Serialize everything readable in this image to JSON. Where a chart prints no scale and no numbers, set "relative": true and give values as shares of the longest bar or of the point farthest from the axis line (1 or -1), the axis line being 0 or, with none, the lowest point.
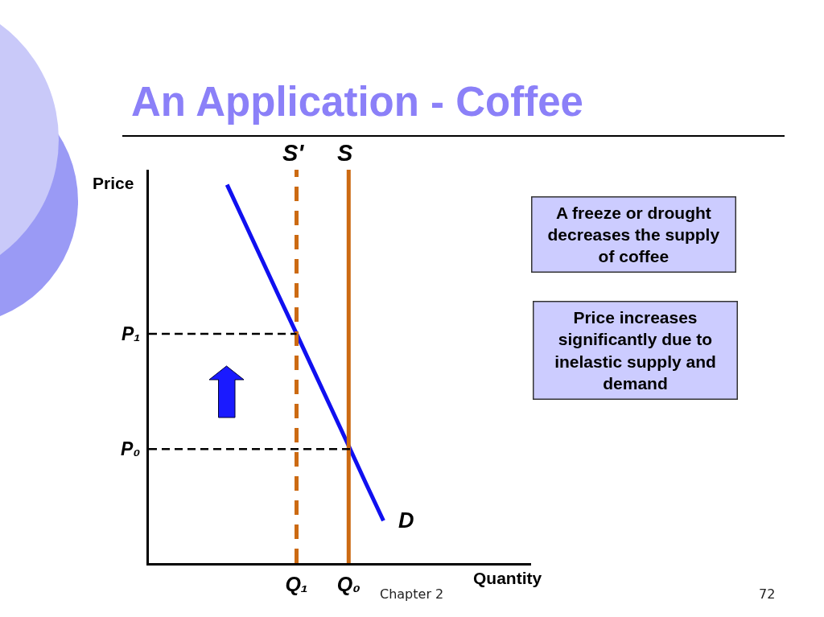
{
  "chart_data": {
    "type": "line",
    "title": "An Application - Coffee",
    "xlabel": "Quantity",
    "ylabel": "Price",
    "relative": true,
    "categories": [
      null,
      null,
      null,
      null,
      null,
      null,
      null,
      null,
      "Q₁",
      null,
      null,
      "Q₀",
      null,
      null,
      null,
      null,
      null,
      null,
      null,
      null,
      null,
      null
    ],
    "series": [
      {
        "name": "D",
        "color": "#1010f0",
        "values": [
          null,
          null,
          null,
          null,
          0.962,
          0.867,
          0.772,
          0.677,
          0.583,
          0.488,
          0.393,
          0.298,
          0.202,
          0.108,
          null,
          null,
          null,
          null,
          null,
          null,
          null,
          null
        ]
      },
      {
        "name": "S'",
        "color": "#cc6a12",
        "x": [
          "Q₁",
          "Q₁"
        ],
        "values": [
          0,
          1
        ],
        "line_style": "dashed"
      },
      {
        "name": "S",
        "color": "#cc6a12",
        "x": [
          "Q₀",
          "Q₀"
        ],
        "values": [
          0,
          1
        ]
      }
    ],
    "ref_lines": [
      {
        "axis": "y",
        "value": 0.583,
        "label": "P₁",
        "color": "#000000",
        "line_style": "dashed"
      },
      {
        "axis": "y",
        "value": 0.29,
        "label": "P₀",
        "color": "#000000",
        "line_style": "dashed"
      }
    ],
    "annotations": [
      "A freeze or drought decreases the supply of coffee",
      "Price increases significantly due to inelastic supply and demand",
      "Chapter 2",
      "72"
    ]
  }
}
